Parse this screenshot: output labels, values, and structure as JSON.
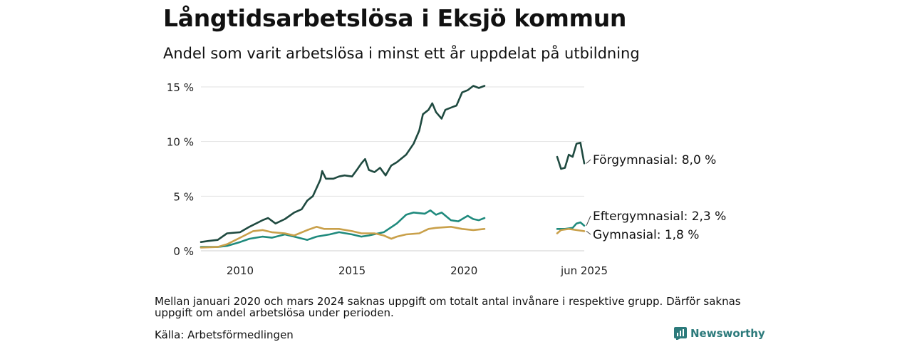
{
  "header": {
    "title": "Långtidsarbetslösa i Eksjö kommun",
    "subtitle": "Andel som varit arbetslösa i minst ett år uppdelat på utbildning"
  },
  "footer": {
    "note": "Mellan januari 2020 och mars 2024 saknas uppgift om totalt antal invånare i respektive grupp. Därför saknas uppgift om andel arbetslösa under perioden.",
    "source": "Källa: Arbetsförmedlingen",
    "brand": "Newsworthy",
    "brand_icon": "newsworthy-logo-icon"
  },
  "chart_data": {
    "type": "line",
    "y_unit": "%",
    "ylim": [
      0,
      15.5
    ],
    "y_ticks": [
      0,
      5,
      10,
      15
    ],
    "y_tick_labels": [
      "0 %",
      "5 %",
      "10 %",
      "15 %"
    ],
    "grid": true,
    "segments": [
      {
        "x_range": [
          "2008-04",
          "2020-12"
        ],
        "x_ticks": [
          "2010",
          "2015",
          "2020"
        ],
        "x_tick_labels": [
          "2010",
          "2015",
          "2020"
        ]
      },
      {
        "x_range": [
          "2024-04",
          "2025-06"
        ],
        "x_ticks": [
          "2025-06"
        ],
        "x_tick_labels": [
          "jun 2025"
        ]
      }
    ],
    "series": [
      {
        "name": "Förgymnasial",
        "end_label": "Förgymnasial: 8,0 %",
        "color": "#1f4a40",
        "points": [
          [
            "2008-04",
            0.8
          ],
          [
            "2008-08",
            0.9
          ],
          [
            "2009-01",
            1.0
          ],
          [
            "2009-06",
            1.6
          ],
          [
            "2010-01",
            1.7
          ],
          [
            "2010-06",
            2.2
          ],
          [
            "2011-01",
            2.8
          ],
          [
            "2011-04",
            3.0
          ],
          [
            "2011-08",
            2.5
          ],
          [
            "2012-01",
            2.9
          ],
          [
            "2012-06",
            3.5
          ],
          [
            "2012-10",
            3.8
          ],
          [
            "2013-01",
            4.6
          ],
          [
            "2013-04",
            5.0
          ],
          [
            "2013-08",
            6.5
          ],
          [
            "2013-09",
            7.3
          ],
          [
            "2013-11",
            6.6
          ],
          [
            "2014-03",
            6.6
          ],
          [
            "2014-06",
            6.8
          ],
          [
            "2014-09",
            6.9
          ],
          [
            "2015-01",
            6.8
          ],
          [
            "2015-04",
            7.5
          ],
          [
            "2015-06",
            8.0
          ],
          [
            "2015-08",
            8.4
          ],
          [
            "2015-10",
            7.4
          ],
          [
            "2016-01",
            7.2
          ],
          [
            "2016-04",
            7.6
          ],
          [
            "2016-07",
            6.9
          ],
          [
            "2016-10",
            7.8
          ],
          [
            "2017-01",
            8.1
          ],
          [
            "2017-06",
            8.8
          ],
          [
            "2017-10",
            9.8
          ],
          [
            "2018-01",
            11.0
          ],
          [
            "2018-03",
            12.5
          ],
          [
            "2018-06",
            12.9
          ],
          [
            "2018-08",
            13.5
          ],
          [
            "2018-10",
            12.7
          ],
          [
            "2019-01",
            12.1
          ],
          [
            "2019-03",
            12.9
          ],
          [
            "2019-06",
            13.1
          ],
          [
            "2019-09",
            13.3
          ],
          [
            "2019-12",
            14.5
          ],
          [
            "2020-03",
            14.7
          ],
          [
            "2020-06",
            15.1
          ],
          [
            "2020-09",
            14.9
          ],
          [
            "2020-12",
            15.1
          ],
          null,
          [
            "2024-04",
            8.6
          ],
          [
            "2024-06",
            7.5
          ],
          [
            "2024-08",
            7.6
          ],
          [
            "2024-10",
            8.8
          ],
          [
            "2024-12",
            8.6
          ],
          [
            "2025-02",
            9.8
          ],
          [
            "2025-04",
            9.9
          ],
          [
            "2025-06",
            8.0
          ]
        ]
      },
      {
        "name": "Eftergymnasial",
        "end_label": "Eftergymnasial: 2,3 %",
        "color": "#1f8a7d",
        "points": [
          [
            "2008-04",
            0.35
          ],
          [
            "2009-01",
            0.35
          ],
          [
            "2009-06",
            0.45
          ],
          [
            "2010-01",
            0.8
          ],
          [
            "2010-06",
            1.1
          ],
          [
            "2011-01",
            1.3
          ],
          [
            "2011-06",
            1.2
          ],
          [
            "2012-01",
            1.5
          ],
          [
            "2012-06",
            1.3
          ],
          [
            "2013-01",
            1.0
          ],
          [
            "2013-06",
            1.3
          ],
          [
            "2014-01",
            1.5
          ],
          [
            "2014-06",
            1.7
          ],
          [
            "2015-01",
            1.5
          ],
          [
            "2015-06",
            1.3
          ],
          [
            "2015-10",
            1.4
          ],
          [
            "2016-06",
            1.7
          ],
          [
            "2017-01",
            2.5
          ],
          [
            "2017-06",
            3.3
          ],
          [
            "2017-10",
            3.5
          ],
          [
            "2018-04",
            3.4
          ],
          [
            "2018-07",
            3.7
          ],
          [
            "2018-10",
            3.3
          ],
          [
            "2019-01",
            3.5
          ],
          [
            "2019-06",
            2.8
          ],
          [
            "2019-10",
            2.7
          ],
          [
            "2020-03",
            3.2
          ],
          [
            "2020-06",
            2.9
          ],
          [
            "2020-09",
            2.8
          ],
          [
            "2020-12",
            3.0
          ],
          null,
          [
            "2024-04",
            2.0
          ],
          [
            "2024-08",
            2.0
          ],
          [
            "2024-12",
            2.1
          ],
          [
            "2025-02",
            2.5
          ],
          [
            "2025-04",
            2.6
          ],
          [
            "2025-06",
            2.3
          ]
        ]
      },
      {
        "name": "Gymnasial",
        "end_label": "Gymnasial: 1,8 %",
        "color": "#c9a04a",
        "points": [
          [
            "2008-04",
            0.3
          ],
          [
            "2009-01",
            0.35
          ],
          [
            "2009-06",
            0.6
          ],
          [
            "2010-01",
            1.2
          ],
          [
            "2010-08",
            1.8
          ],
          [
            "2011-01",
            1.9
          ],
          [
            "2011-06",
            1.7
          ],
          [
            "2012-01",
            1.6
          ],
          [
            "2012-06",
            1.4
          ],
          [
            "2013-01",
            1.9
          ],
          [
            "2013-06",
            2.2
          ],
          [
            "2013-10",
            2.0
          ],
          [
            "2014-06",
            2.0
          ],
          [
            "2015-01",
            1.8
          ],
          [
            "2015-06",
            1.6
          ],
          [
            "2016-01",
            1.6
          ],
          [
            "2016-06",
            1.4
          ],
          [
            "2016-10",
            1.1
          ],
          [
            "2017-01",
            1.3
          ],
          [
            "2017-06",
            1.5
          ],
          [
            "2018-01",
            1.6
          ],
          [
            "2018-06",
            2.0
          ],
          [
            "2018-10",
            2.1
          ],
          [
            "2019-06",
            2.2
          ],
          [
            "2019-12",
            2.0
          ],
          [
            "2020-06",
            1.9
          ],
          [
            "2020-12",
            2.0
          ],
          null,
          [
            "2024-04",
            1.6
          ],
          [
            "2024-06",
            1.9
          ],
          [
            "2024-10",
            2.0
          ],
          [
            "2025-02",
            1.9
          ],
          [
            "2025-06",
            1.8
          ]
        ]
      }
    ]
  }
}
